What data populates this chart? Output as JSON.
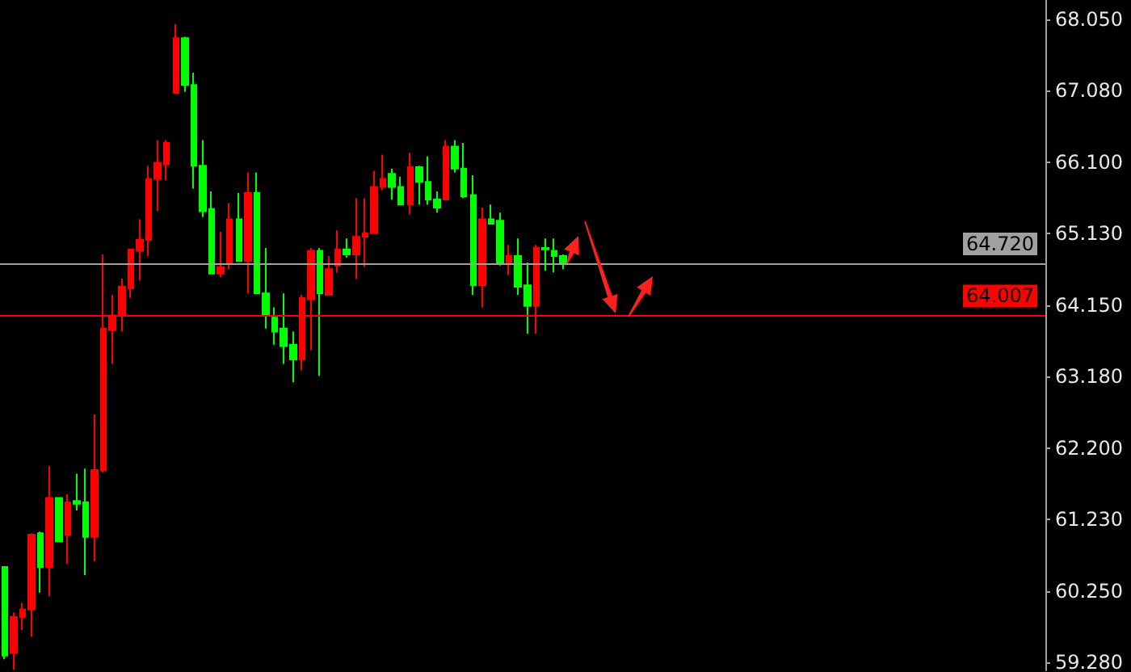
{
  "chart_data": {
    "type": "candlestick",
    "categories": [
      null,
      null,
      null,
      null,
      null,
      null,
      null,
      null,
      null,
      null,
      null,
      null,
      null,
      null,
      null,
      null,
      null,
      null,
      null,
      null,
      null,
      null,
      null,
      null,
      null,
      null,
      null,
      null,
      null,
      null,
      null,
      null,
      null,
      null,
      null,
      null,
      null,
      null,
      null,
      null,
      null,
      null,
      null,
      null,
      null,
      null,
      null,
      null,
      null,
      null,
      null,
      null,
      null,
      null,
      null,
      null,
      null,
      null,
      null,
      null,
      null,
      null,
      null,
      null,
      null,
      null,
      null,
      null,
      null,
      null,
      null,
      null,
      null,
      null,
      null,
      null,
      null,
      null,
      null,
      null,
      null,
      null,
      null,
      null,
      null,
      null,
      null,
      null,
      null,
      null,
      null,
      null,
      null,
      null,
      null,
      null,
      null,
      null,
      null,
      null,
      null,
      null,
      null,
      null,
      null,
      null,
      null,
      null,
      null,
      null,
      null,
      null,
      null,
      null,
      null,
      null
    ],
    "ohlc": [
      [
        60.58,
        60.58,
        59.32,
        59.37
      ],
      [
        59.41,
        59.96,
        59.18,
        59.9
      ],
      [
        59.9,
        60.09,
        59.72,
        60.0
      ],
      [
        60.0,
        61.04,
        59.63,
        61.02
      ],
      [
        61.04,
        61.06,
        60.23,
        60.58
      ],
      [
        60.58,
        61.96,
        60.18,
        61.52
      ],
      [
        61.52,
        61.52,
        60.93,
        60.93
      ],
      [
        61.02,
        61.57,
        60.62,
        61.46
      ],
      [
        61.48,
        61.85,
        61.35,
        61.44
      ],
      [
        61.46,
        61.92,
        60.47,
        60.99
      ],
      [
        60.99,
        62.66,
        60.66,
        61.9
      ],
      [
        61.9,
        64.84,
        61.87,
        63.83
      ],
      [
        63.81,
        64.29,
        63.35,
        64.01
      ],
      [
        64.01,
        64.51,
        63.79,
        64.4
      ],
      [
        64.38,
        64.91,
        64.25,
        64.91
      ],
      [
        64.89,
        65.32,
        64.49,
        65.04
      ],
      [
        65.04,
        66.05,
        64.82,
        65.87
      ],
      [
        65.87,
        66.4,
        65.43,
        66.09
      ],
      [
        66.07,
        66.4,
        65.85,
        66.36
      ],
      [
        67.04,
        67.98,
        67.04,
        67.79
      ],
      [
        67.79,
        67.81,
        67.06,
        67.15
      ],
      [
        67.15,
        67.32,
        65.74,
        66.05
      ],
      [
        66.05,
        66.4,
        65.35,
        65.43
      ],
      [
        65.46,
        65.7,
        64.58,
        64.58
      ],
      [
        64.58,
        65.15,
        64.53,
        64.67
      ],
      [
        64.73,
        65.54,
        64.64,
        65.32
      ],
      [
        65.32,
        65.68,
        64.75,
        64.75
      ],
      [
        64.75,
        65.96,
        64.31,
        65.68
      ],
      [
        65.68,
        65.96,
        64.31,
        64.31
      ],
      [
        64.31,
        64.93,
        63.83,
        64.01
      ],
      [
        63.98,
        64.12,
        63.61,
        63.79
      ],
      [
        63.83,
        64.31,
        63.35,
        63.59
      ],
      [
        63.61,
        63.79,
        63.1,
        63.41
      ],
      [
        63.41,
        64.29,
        63.26,
        64.25
      ],
      [
        64.23,
        64.93,
        63.54,
        64.89
      ],
      [
        64.89,
        64.93,
        63.19,
        64.31
      ],
      [
        64.29,
        64.82,
        64.29,
        64.64
      ],
      [
        64.69,
        65.17,
        64.6,
        64.91
      ],
      [
        64.91,
        65.06,
        64.8,
        64.84
      ],
      [
        64.84,
        65.61,
        64.51,
        65.08
      ],
      [
        65.08,
        65.61,
        64.67,
        65.13
      ],
      [
        65.13,
        65.98,
        65.13,
        65.76
      ],
      [
        65.76,
        66.2,
        65.72,
        65.87
      ],
      [
        65.94,
        66.01,
        65.59,
        65.76
      ],
      [
        65.76,
        65.9,
        65.52,
        65.52
      ],
      [
        65.52,
        66.23,
        65.39,
        66.03
      ],
      [
        66.03,
        66.05,
        65.52,
        65.83
      ],
      [
        65.83,
        66.18,
        65.52,
        65.59
      ],
      [
        65.59,
        65.7,
        65.41,
        65.48
      ],
      [
        65.59,
        66.4,
        65.59,
        66.31
      ],
      [
        66.31,
        66.4,
        65.96,
        66.01
      ],
      [
        66.01,
        66.36,
        65.61,
        65.63
      ],
      [
        65.65,
        65.92,
        64.29,
        64.42
      ],
      [
        64.42,
        65.48,
        64.12,
        65.32
      ],
      [
        65.32,
        65.52,
        65.26,
        65.26
      ],
      [
        65.3,
        65.41,
        64.69,
        64.73
      ],
      [
        64.73,
        64.97,
        64.56,
        64.82
      ],
      [
        64.82,
        65.06,
        64.29,
        64.4
      ],
      [
        64.42,
        64.73,
        63.76,
        64.14
      ],
      [
        64.14,
        64.97,
        63.76,
        64.93
      ],
      [
        64.93,
        65.06,
        64.62,
        64.91
      ],
      [
        64.89,
        65.06,
        64.6,
        64.82
      ],
      [
        64.82,
        64.84,
        64.64,
        64.73
      ],
      null,
      null,
      null,
      null,
      null,
      null,
      null,
      null,
      null,
      null,
      null,
      null,
      null,
      null,
      null,
      null,
      null,
      null,
      null,
      null,
      null,
      null,
      null,
      null,
      null,
      null,
      null,
      null,
      null,
      null,
      null,
      null,
      null,
      null,
      null,
      null,
      null,
      null,
      null,
      null,
      null,
      null,
      null,
      null,
      null,
      null,
      null,
      null,
      null,
      null,
      null,
      null,
      null
    ],
    "colors": [
      "#00ff00",
      "#ff0000",
      "#ff0000",
      "#ff0000",
      "#00ff00",
      "#ff0000",
      "#00ff00",
      "#ff0000",
      "#00ff00",
      "#00ff00",
      "#ff0000",
      "#ff0000",
      "#ff0000",
      "#ff0000",
      "#ff0000",
      "#ff0000",
      "#ff0000",
      "#ff0000",
      "#ff0000",
      "#ff0000",
      "#00ff00",
      "#00ff00",
      "#00ff00",
      "#00ff00",
      "#ff0000",
      "#ff0000",
      "#00ff00",
      "#ff0000",
      "#00ff00",
      "#00ff00",
      "#00ff00",
      "#00ff00",
      "#00ff00",
      "#ff0000",
      "#ff0000",
      "#00ff00",
      "#ff0000",
      "#ff0000",
      "#00ff00",
      "#ff0000",
      "#ff0000",
      "#ff0000",
      "#ff0000",
      "#00ff00",
      "#00ff00",
      "#ff0000",
      "#00ff00",
      "#00ff00",
      "#00ff00",
      "#ff0000",
      "#00ff00",
      "#00ff00",
      "#00ff00",
      "#ff0000",
      "#00ff00",
      "#00ff00",
      "#ff0000",
      "#00ff00",
      "#00ff00",
      "#ff0000",
      "#00ff00",
      "#00ff00",
      "#00ff00",
      null,
      null,
      null,
      null,
      null,
      null,
      null,
      null,
      null,
      null,
      null,
      null,
      null,
      null,
      null,
      null,
      null,
      null,
      null,
      null,
      null,
      null,
      null,
      null,
      null,
      null,
      null,
      null,
      null,
      null,
      null,
      null,
      null,
      null,
      null,
      null,
      null,
      null,
      null,
      null,
      null,
      null,
      null,
      null,
      null,
      null,
      null,
      null,
      null,
      null,
      null,
      null,
      null
    ],
    "ylim": [
      59.17,
      68.31
    ],
    "yticks": [
      {
        "value": 59.28,
        "label": "59.280"
      },
      {
        "value": 60.25,
        "label": "60.250"
      },
      {
        "value": 61.23,
        "label": "61.230"
      },
      {
        "value": 62.2,
        "label": "62.200"
      },
      {
        "value": 63.18,
        "label": "63.180"
      },
      {
        "value": 64.15,
        "label": "64.150"
      },
      {
        "value": 65.13,
        "label": "65.130"
      },
      {
        "value": 66.1,
        "label": "66.100"
      },
      {
        "value": 67.08,
        "label": "67.080"
      },
      {
        "value": 68.05,
        "label": "68.050"
      }
    ],
    "ref_lines": [
      {
        "axis": "y",
        "value": 64.72,
        "label": "64.720",
        "color": "#a0a0a0"
      },
      {
        "axis": "y",
        "value": 64.007,
        "label": "64.007",
        "color": "#ff0000"
      }
    ],
    "grid": false,
    "tick_labels": "y"
  }
}
